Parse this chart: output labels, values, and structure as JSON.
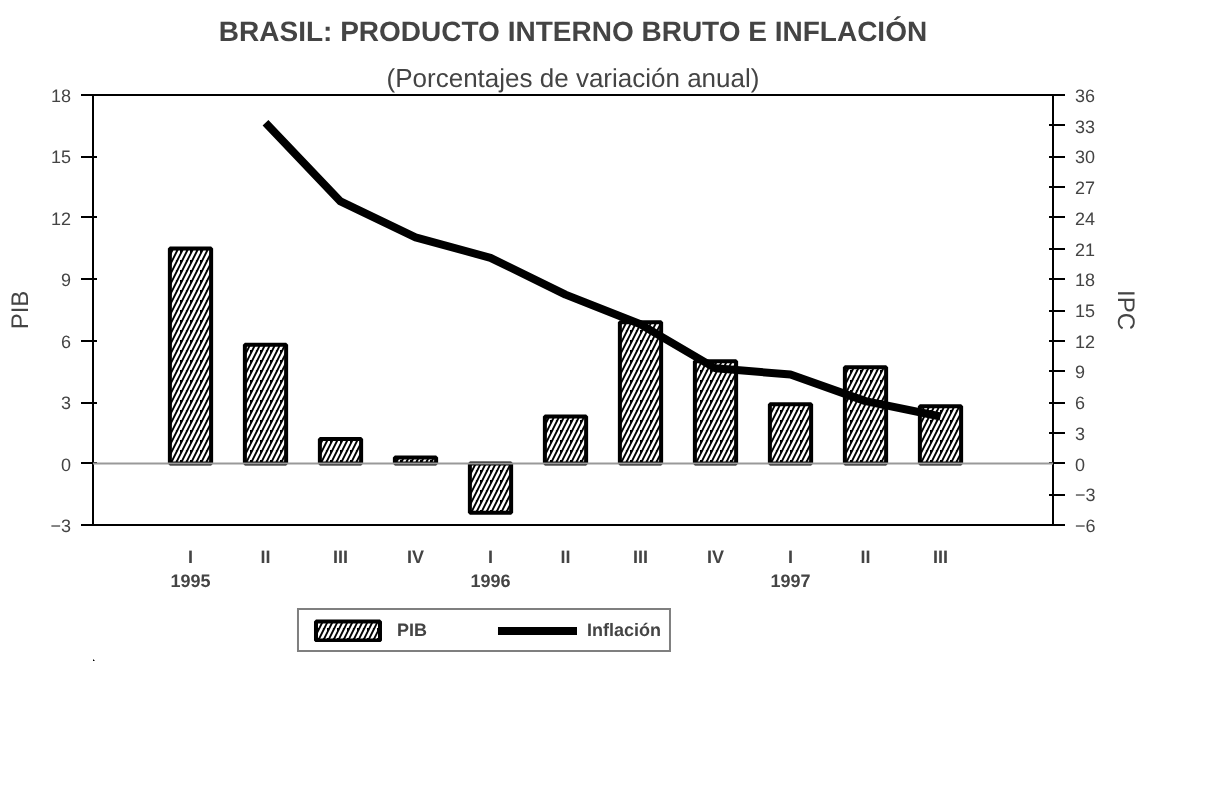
{
  "chart_data": {
    "type": "bar",
    "title": "BRASIL: PRODUCTO INTERNO BRUTO E INFLACIÓN",
    "subtitle": "(Porcentajes de variación anual)",
    "categories": [
      "I\n1995",
      "II",
      "III",
      "IV",
      "I\n1996",
      "II",
      "III",
      "IV",
      "I\n1997",
      "II",
      "III"
    ],
    "series": [
      {
        "name": "PIB",
        "color": "#000000",
        "values": [
          10.5,
          5.8,
          1.2,
          0.3,
          -2.4,
          2.3,
          6.9,
          5.0,
          2.9,
          4.7,
          2.8
        ]
      },
      {
        "name": "Inflación",
        "type": "line",
        "axis": "y2",
        "color": "#000000",
        "values": [
          null,
          33.3,
          25.6,
          22.1,
          20.1,
          16.5,
          13.6,
          9.3,
          8.7,
          6.1,
          4.6
        ]
      }
    ],
    "ylabel": "PIB",
    "y2label": "IPC",
    "ylim": [
      -3,
      18
    ],
    "yticks": [
      -3,
      0,
      3,
      6,
      9,
      12,
      15,
      18
    ],
    "y2lim": [
      -6,
      36
    ],
    "y2ticks": [
      -6,
      -3,
      0,
      3,
      6,
      9,
      12,
      15,
      18,
      21,
      24,
      27,
      30,
      33,
      36
    ],
    "ref_lines": [
      {
        "axis": "y",
        "value": 0,
        "color": "#999999"
      }
    ],
    "grid": false,
    "legend": "bottom",
    "line_style": "solid",
    "marker": "none"
  }
}
